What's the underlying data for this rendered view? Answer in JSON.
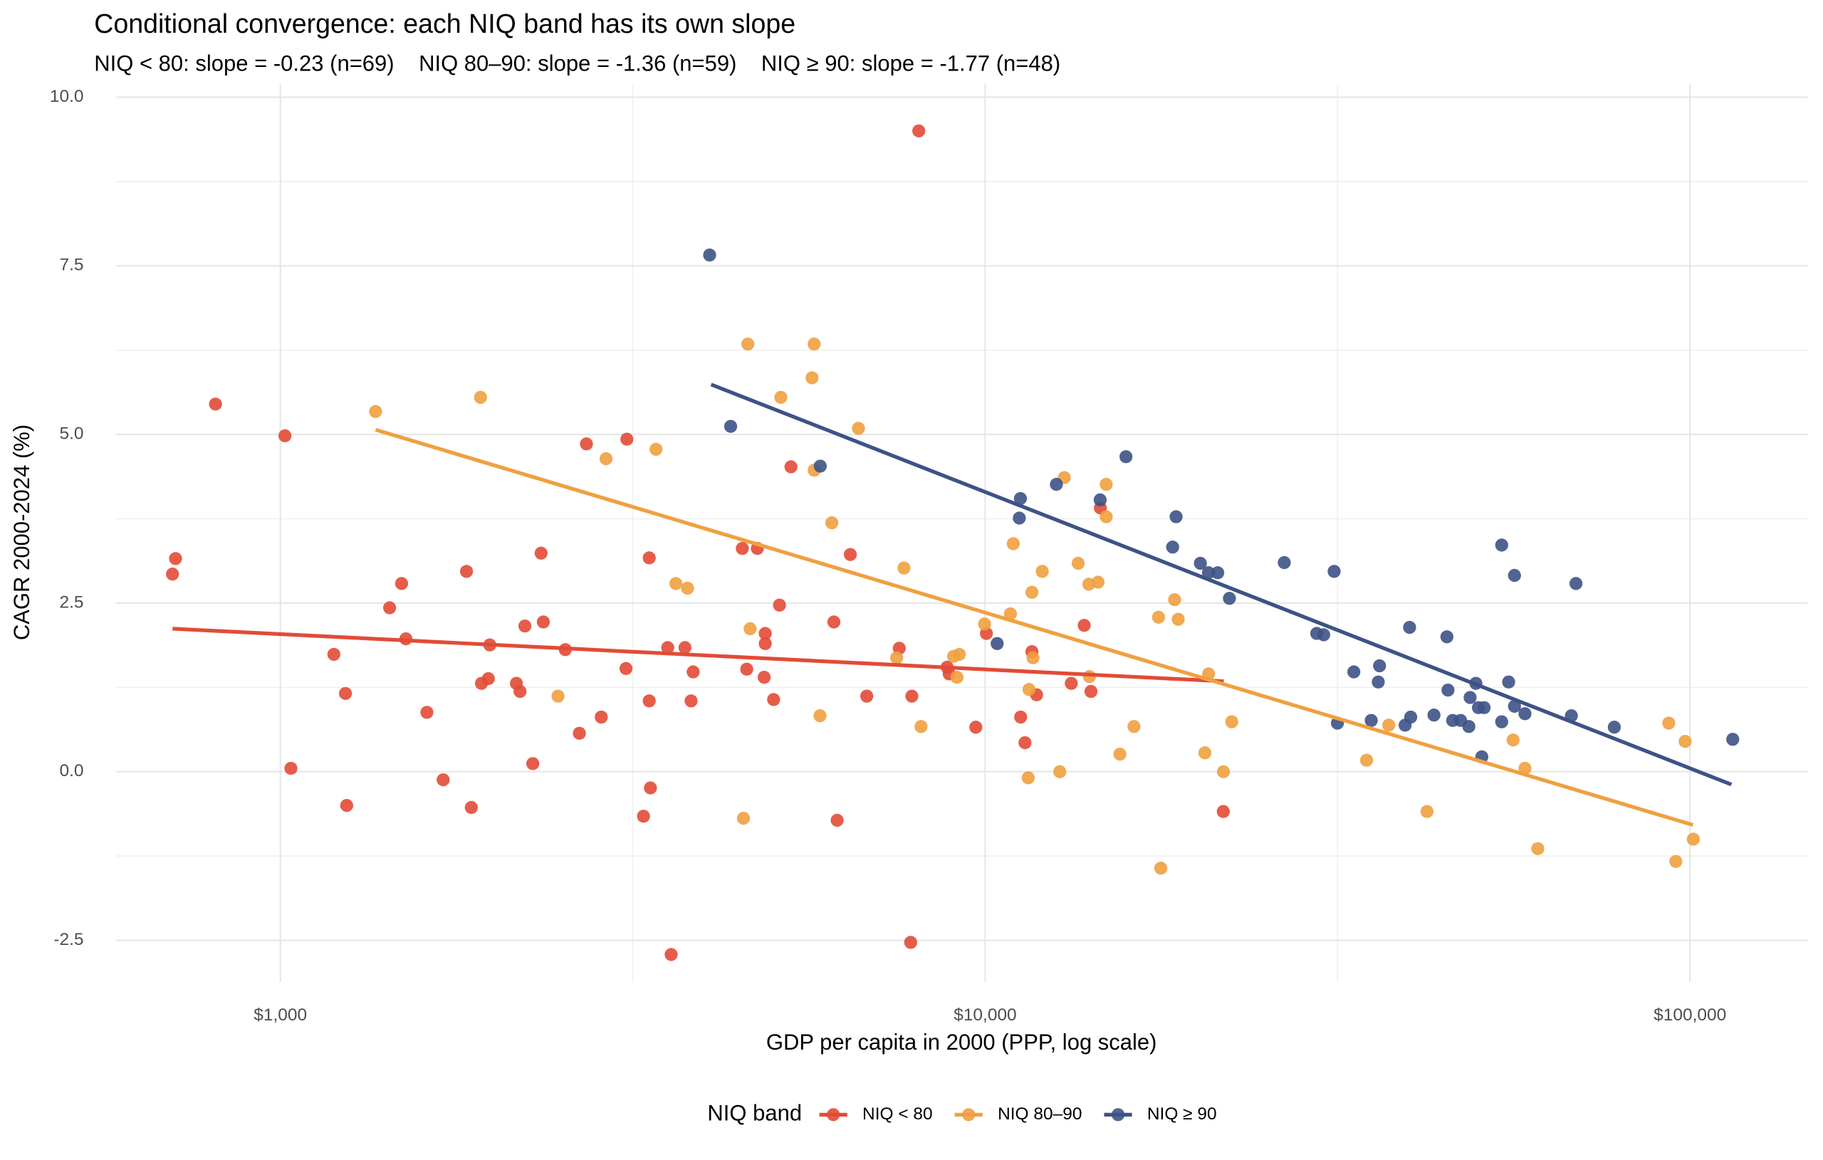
{
  "chart_data": {
    "type": "scatter",
    "title": "Conditional convergence: each NIQ band has its own slope",
    "subtitle": "NIQ < 80: slope = -0.23 (n=69)    NIQ 80–90: slope = -1.36 (n=59)    NIQ ≥ 90: slope = -1.77 (n=48)",
    "x_label": "GDP per capita in 2000 (PPP, log scale)",
    "y_label": "CAGR 2000-2024 (%)",
    "legend_title": "NIQ band",
    "legend_position": "bottom",
    "x_log": true,
    "grid": true,
    "xlim": [
      585,
      147000
    ],
    "ylim": [
      -3.12,
      10.2
    ],
    "xticks": [
      {
        "value": 1000,
        "label": "$1,000"
      },
      {
        "value": 10000,
        "label": "$10,000"
      },
      {
        "value": 100000,
        "label": "$100,000"
      }
    ],
    "yticks": [
      -2.5,
      {
        "value": 0,
        "label": "0.0"
      },
      2.5,
      {
        "value": 5,
        "label": "5.0"
      },
      7.5,
      {
        "value": 10,
        "label": "10.0"
      }
    ],
    "series": [
      {
        "name": "NIQ < 80",
        "color": "#e24b36",
        "x": [
          703,
          710,
          809,
          1015,
          1035,
          1191,
          1237,
          1242,
          1429,
          1486,
          1507,
          1614,
          1702,
          1837,
          1866,
          1929,
          1973,
          1982,
          2162,
          2188,
          2223,
          2281,
          2344,
          2361,
          2537,
          2656,
          2718,
          2853,
          3102,
          3093,
          3275,
          3337,
          3337,
          3350,
          3545,
          3585,
          3750,
          3826,
          3852,
          4523,
          4589,
          4751,
          4858,
          4875,
          4875,
          5010,
          5107,
          5302,
          6100,
          6166,
          6437,
          6792,
          7553,
          7840,
          7870,
          8050,
          8830,
          8890,
          9700,
          10040,
          11230,
          11390,
          11650,
          11830,
          13250,
          13820,
          14130,
          14570,
          21770
        ],
        "y": [
          2.93,
          3.16,
          5.45,
          4.98,
          0.05,
          1.74,
          1.16,
          -0.5,
          2.43,
          2.79,
          1.97,
          0.88,
          -0.12,
          2.97,
          -0.53,
          1.31,
          1.38,
          1.88,
          1.31,
          1.19,
          2.16,
          0.12,
          3.24,
          2.22,
          1.81,
          0.57,
          4.86,
          0.81,
          4.93,
          1.53,
          -0.66,
          3.17,
          1.05,
          -0.24,
          1.84,
          -2.71,
          1.84,
          1.05,
          1.48,
          3.31,
          1.52,
          3.31,
          1.4,
          1.9,
          2.05,
          1.07,
          2.47,
          4.52,
          2.22,
          -0.72,
          3.22,
          1.12,
          1.83,
          -2.53,
          1.12,
          9.5,
          1.55,
          1.45,
          0.66,
          2.05,
          0.81,
          0.43,
          1.78,
          1.14,
          1.31,
          2.17,
          1.19,
          3.91,
          -0.59
        ],
        "trend": {
          "x": [
            703,
            21800
          ],
          "y": [
            2.12,
            1.34
          ]
        }
      },
      {
        "name": "NIQ 80–90",
        "color": "#f0a03f",
        "x": [
          1365,
          1923,
          2477,
          2898,
          3412,
          3640,
          3782,
          4540,
          4605,
          4640,
          5130,
          5680,
          5720,
          5720,
          5830,
          6060,
          6610,
          7490,
          7670,
          8110,
          9020,
          9120,
          9190,
          9980,
          10860,
          10960,
          11510,
          11540,
          11650,
          11690,
          12050,
          12760,
          12950,
          13550,
          14030,
          14060,
          14460,
          14850,
          14850,
          15530,
          16260,
          17620,
          17750,
          18570,
          18790,
          20500,
          20750,
          21780,
          22380,
          34770,
          37380,
          42360,
          56110,
          58330,
          60820,
          93300,
          95480,
          98440,
          101100
        ],
        "y": [
          5.34,
          5.55,
          1.12,
          4.64,
          4.78,
          2.79,
          2.72,
          -0.69,
          6.34,
          2.12,
          5.55,
          5.84,
          6.34,
          4.47,
          0.83,
          3.69,
          5.09,
          1.69,
          3.02,
          0.67,
          1.71,
          1.4,
          1.74,
          2.19,
          2.34,
          3.38,
          -0.09,
          1.22,
          2.66,
          1.69,
          2.97,
          0,
          4.36,
          3.09,
          2.78,
          1.41,
          2.81,
          4.26,
          3.78,
          0.26,
          0.67,
          2.29,
          -1.43,
          2.55,
          2.26,
          0.28,
          1.45,
          0,
          0.74,
          0.17,
          0.69,
          -0.59,
          0.47,
          0.05,
          -1.14,
          0.72,
          -1.33,
          0.45,
          -1
        ],
        "trend": {
          "x": [
            1365,
            101000
          ],
          "y": [
            5.07,
            -0.79
          ]
        }
      },
      {
        "name": "NIQ ≥ 90",
        "color": "#3d5286",
        "x": [
          4065,
          4354,
          5835,
          10400,
          11180,
          11220,
          12620,
          14560,
          15840,
          18450,
          18660,
          20200,
          20740,
          21380,
          22210,
          26570,
          29540,
          30220,
          31270,
          31610,
          33350,
          35300,
          36120,
          36270,
          39430,
          40010,
          40160,
          43330,
          45200,
          45360,
          46060,
          47270,
          48560,
          48760,
          49690,
          50100,
          50660,
          51040,
          54060,
          54060,
          55300,
          56370,
          56370,
          58330,
          67880,
          68900,
          78100,
          115000
        ],
        "y": [
          7.66,
          5.12,
          4.53,
          1.9,
          3.76,
          4.05,
          4.26,
          4.03,
          4.67,
          3.33,
          3.78,
          3.09,
          2.95,
          2.95,
          2.57,
          3.1,
          2.05,
          2.03,
          2.97,
          0.72,
          1.48,
          0.76,
          1.33,
          1.57,
          0.69,
          2.14,
          0.81,
          0.84,
          2,
          1.21,
          0.76,
          0.76,
          0.67,
          1.1,
          1.31,
          0.95,
          0.22,
          0.95,
          3.36,
          0.74,
          1.33,
          2.91,
          0.97,
          0.86,
          0.83,
          2.79,
          0.66,
          0.48
        ],
        "trend": {
          "x": [
            4085,
            114500
          ],
          "y": [
            5.74,
            -0.19
          ]
        }
      }
    ]
  }
}
